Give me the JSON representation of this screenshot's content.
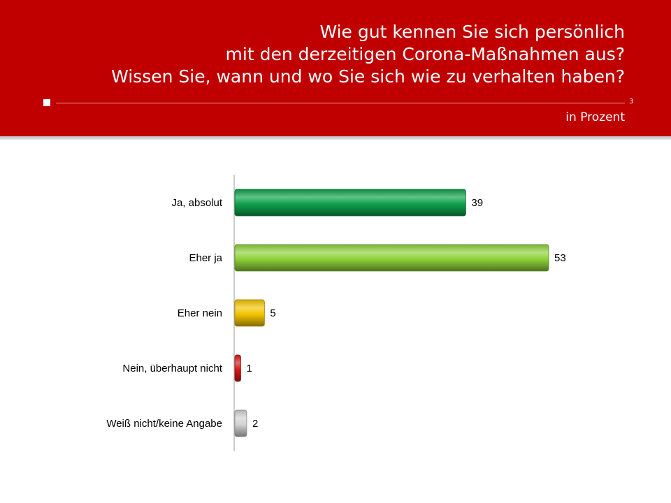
{
  "header": {
    "title_lines": [
      "Wie gut kennen Sie sich persönlich",
      "mit den derzeitigen Corona-Maßnahmen aus?",
      "Wissen Sie, wann und wo Sie sich wie zu verhalten haben?"
    ],
    "page_number": "3",
    "unit": "in Prozent",
    "background_color": "#c00000"
  },
  "chart_data": {
    "type": "bar",
    "orientation": "horizontal",
    "categories": [
      "Ja, absolut",
      "Eher ja",
      "Eher nein",
      "Nein, überhaupt nicht",
      "Weiß nicht/keine Angabe"
    ],
    "values": [
      39,
      53,
      5,
      1,
      2
    ],
    "colors": [
      "#0ea14a",
      "#8ed13a",
      "#f3c400",
      "#d81818",
      "#d2d2d2"
    ],
    "xlim": [
      0,
      53
    ],
    "grid": false,
    "legend": "none"
  }
}
